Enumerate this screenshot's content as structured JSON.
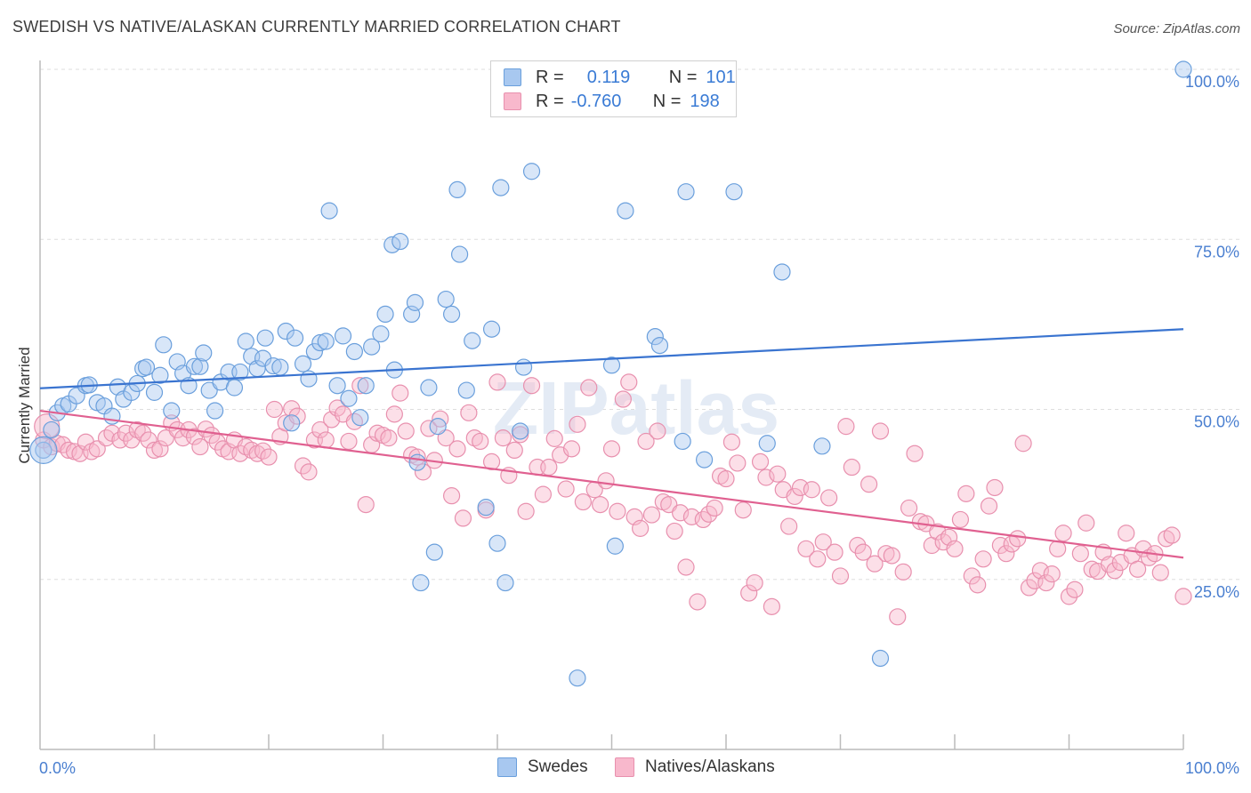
{
  "title": "SWEDISH VS NATIVE/ALASKAN CURRENTLY MARRIED CORRELATION CHART",
  "source": "Source: ZipAtlas.com",
  "watermark": "ZIPatlas",
  "legend": {
    "rows": [
      {
        "r_label": "R =",
        "r_value": "0.119",
        "n_label": "N =",
        "n_value": "101"
      },
      {
        "r_label": "R =",
        "r_value": "-0.760",
        "n_label": "N =",
        "n_value": "198"
      }
    ]
  },
  "bottom_legend": [
    "Swedes",
    "Natives/Alaskans"
  ],
  "colors": {
    "swedes_fill": "#a8c8f0",
    "swedes_stroke": "#6a9fdc",
    "swedes_line": "#3a74d0",
    "natives_fill": "#f8b8cc",
    "natives_stroke": "#e890ae",
    "natives_line": "#e06090",
    "axis_text": "#4a7fd0",
    "grid": "#dddddd"
  },
  "chart_data": {
    "type": "scatter",
    "xlabel": "",
    "ylabel": "Currently Married",
    "xlim": [
      0,
      100
    ],
    "ylim": [
      0,
      100
    ],
    "x_tick_labels": [
      "0.0%",
      "100.0%"
    ],
    "y_tick_labels": [
      "25.0%",
      "50.0%",
      "75.0%",
      "100.0%"
    ],
    "y_ticks": [
      25,
      50,
      75,
      100
    ],
    "grid": true,
    "legend_position": "top-center",
    "series": [
      {
        "name": "Swedes",
        "trend": [
          [
            0,
            53.1
          ],
          [
            100,
            61.8
          ]
        ],
        "points": [
          [
            0.3,
            44.0
          ],
          [
            1,
            47
          ],
          [
            1.5,
            49.5
          ],
          [
            2.0,
            50.5
          ],
          [
            2.5,
            50.8
          ],
          [
            3.2,
            52
          ],
          [
            4,
            53.5
          ],
          [
            4.3,
            53.6
          ],
          [
            5,
            51
          ],
          [
            5.6,
            50.5
          ],
          [
            6.3,
            49
          ],
          [
            6.8,
            53.3
          ],
          [
            7.3,
            51.5
          ],
          [
            8,
            52.5
          ],
          [
            8.5,
            53.8
          ],
          [
            9,
            56
          ],
          [
            9.3,
            56.2
          ],
          [
            10,
            52.5
          ],
          [
            10.5,
            55
          ],
          [
            10.8,
            59.5
          ],
          [
            11.5,
            49.8
          ],
          [
            12,
            57
          ],
          [
            12.5,
            55.3
          ],
          [
            13,
            53.5
          ],
          [
            13.5,
            56.3
          ],
          [
            14,
            56.3
          ],
          [
            14.3,
            58.3
          ],
          [
            14.8,
            52.8
          ],
          [
            15.3,
            49.8
          ],
          [
            15.8,
            54
          ],
          [
            16.5,
            55.5
          ],
          [
            17,
            53.2
          ],
          [
            17.5,
            55.5
          ],
          [
            18,
            60
          ],
          [
            18.5,
            57.8
          ],
          [
            19,
            56
          ],
          [
            19.5,
            57.5
          ],
          [
            19.7,
            60.5
          ],
          [
            20.4,
            56.4
          ],
          [
            21,
            56.2
          ],
          [
            21.5,
            61.5
          ],
          [
            22,
            48
          ],
          [
            22.3,
            60.5
          ],
          [
            23,
            56.7
          ],
          [
            23.5,
            54.5
          ],
          [
            24,
            58.5
          ],
          [
            24.5,
            59.8
          ],
          [
            25,
            60
          ],
          [
            25.3,
            79.2
          ],
          [
            26,
            53.5
          ],
          [
            26.5,
            60.8
          ],
          [
            27,
            51.6
          ],
          [
            27.5,
            58.5
          ],
          [
            28,
            48.8
          ],
          [
            28.5,
            53.5
          ],
          [
            29,
            59.2
          ],
          [
            29.8,
            61.1
          ],
          [
            30.2,
            64
          ],
          [
            30.8,
            74.2
          ],
          [
            31,
            55.8
          ],
          [
            31.5,
            74.7
          ],
          [
            32.5,
            64
          ],
          [
            32.8,
            65.7
          ],
          [
            33,
            42.2
          ],
          [
            33.3,
            24.5
          ],
          [
            34,
            53.2
          ],
          [
            34.5,
            29
          ],
          [
            34.8,
            47.5
          ],
          [
            35.5,
            66.2
          ],
          [
            36,
            64
          ],
          [
            36.5,
            82.3
          ],
          [
            36.7,
            72.8
          ],
          [
            37.3,
            52.8
          ],
          [
            37.8,
            60.1
          ],
          [
            39,
            35.6
          ],
          [
            39.5,
            61.8
          ],
          [
            40,
            30.3
          ],
          [
            40.3,
            82.6
          ],
          [
            40.7,
            24.5
          ],
          [
            42,
            46.8
          ],
          [
            42.3,
            56.2
          ],
          [
            43,
            85
          ],
          [
            47,
            100
          ],
          [
            47,
            10.5
          ],
          [
            50,
            56.5
          ],
          [
            50.3,
            29.9
          ],
          [
            51.2,
            79.2
          ],
          [
            53.8,
            60.7
          ],
          [
            54.2,
            59.4
          ],
          [
            56.2,
            45.3
          ],
          [
            56.5,
            82
          ],
          [
            58.1,
            42.6
          ],
          [
            60.7,
            82
          ],
          [
            63.6,
            45
          ],
          [
            64.9,
            70.2
          ],
          [
            68.4,
            44.6
          ],
          [
            73.5,
            13.4
          ],
          [
            100,
            100
          ]
        ]
      },
      {
        "name": "Natives/Alaskans",
        "trend": [
          [
            0,
            49.8
          ],
          [
            100,
            28.2
          ]
        ],
        "points": [
          [
            0.3,
            45.5
          ],
          [
            1,
            44.5
          ],
          [
            1.5,
            45
          ],
          [
            2,
            44.8
          ],
          [
            2.5,
            44
          ],
          [
            3,
            43.8
          ],
          [
            3.5,
            43.5
          ],
          [
            4,
            45.2
          ],
          [
            4.5,
            43.8
          ],
          [
            5,
            44.2
          ],
          [
            5.8,
            45.8
          ],
          [
            6.3,
            46.5
          ],
          [
            7,
            45.5
          ],
          [
            7.5,
            46.5
          ],
          [
            8,
            45.5
          ],
          [
            8.5,
            47
          ],
          [
            9,
            46.5
          ],
          [
            9.5,
            45.5
          ],
          [
            10,
            44
          ],
          [
            10.5,
            44.2
          ],
          [
            11,
            45.8
          ],
          [
            11.5,
            48
          ],
          [
            12,
            47
          ],
          [
            12.5,
            45.8
          ],
          [
            13,
            47
          ],
          [
            13.5,
            46
          ],
          [
            14,
            44.5
          ],
          [
            14.5,
            47.1
          ],
          [
            15,
            46.2
          ],
          [
            15.5,
            45.2
          ],
          [
            16,
            44.2
          ],
          [
            16.5,
            43.8
          ],
          [
            17,
            45.5
          ],
          [
            17.5,
            43.5
          ],
          [
            18,
            44.5
          ],
          [
            18.5,
            44
          ],
          [
            19,
            43.5
          ],
          [
            19.5,
            43.9
          ],
          [
            20,
            43
          ],
          [
            20.5,
            50
          ],
          [
            21,
            46
          ],
          [
            21.5,
            48
          ],
          [
            22,
            50.1
          ],
          [
            22.5,
            49
          ],
          [
            23,
            41.7
          ],
          [
            23.5,
            40.8
          ],
          [
            24,
            45.5
          ],
          [
            24.5,
            47
          ],
          [
            25,
            45.5
          ],
          [
            25.5,
            48.5
          ],
          [
            26,
            50.2
          ],
          [
            26.5,
            49.3
          ],
          [
            27,
            45.3
          ],
          [
            27.5,
            48.2
          ],
          [
            28,
            53.5
          ],
          [
            28.5,
            36
          ],
          [
            29,
            44.8
          ],
          [
            29.5,
            46.5
          ],
          [
            30,
            46.2
          ],
          [
            30.5,
            45.8
          ],
          [
            31,
            49.3
          ],
          [
            31.5,
            52.4
          ],
          [
            32,
            46.8
          ],
          [
            32.5,
            43.3
          ],
          [
            33,
            43
          ],
          [
            33.5,
            40.8
          ],
          [
            34,
            47.2
          ],
          [
            34.5,
            42.5
          ],
          [
            35,
            48.6
          ],
          [
            35.5,
            45.8
          ],
          [
            36,
            37.3
          ],
          [
            36.5,
            44.2
          ],
          [
            37,
            34
          ],
          [
            37.5,
            49.5
          ],
          [
            38,
            45.8
          ],
          [
            38.5,
            45.3
          ],
          [
            39,
            35.2
          ],
          [
            39.5,
            42.3
          ],
          [
            40,
            54
          ],
          [
            40.5,
            45.8
          ],
          [
            41,
            40.3
          ],
          [
            41.5,
            44
          ],
          [
            42,
            46.3
          ],
          [
            42.5,
            35
          ],
          [
            43,
            53.5
          ],
          [
            43.5,
            41.5
          ],
          [
            44,
            37.5
          ],
          [
            44.5,
            41.5
          ],
          [
            45,
            45.7
          ],
          [
            45.5,
            43.3
          ],
          [
            46,
            38.3
          ],
          [
            46.5,
            44.2
          ],
          [
            47,
            47.8
          ],
          [
            47.5,
            36.4
          ],
          [
            48,
            53.2
          ],
          [
            48.5,
            38.2
          ],
          [
            49,
            36
          ],
          [
            49.5,
            39.5
          ],
          [
            50,
            44.2
          ],
          [
            50.5,
            35
          ],
          [
            51,
            51.5
          ],
          [
            51.5,
            54
          ],
          [
            52,
            34.2
          ],
          [
            52.5,
            32.5
          ],
          [
            53,
            45.3
          ],
          [
            53.5,
            34.5
          ],
          [
            54,
            46.8
          ],
          [
            54.5,
            36.4
          ],
          [
            55,
            36
          ],
          [
            55.5,
            32.1
          ],
          [
            56,
            34.8
          ],
          [
            56.5,
            26.8
          ],
          [
            57,
            34.2
          ],
          [
            57.5,
            21.7
          ],
          [
            58,
            33.8
          ],
          [
            58.5,
            34.6
          ],
          [
            59,
            35.5
          ],
          [
            59.5,
            40.2
          ],
          [
            60,
            39.8
          ],
          [
            60.5,
            45.2
          ],
          [
            61,
            42.1
          ],
          [
            61.5,
            35.2
          ],
          [
            62,
            23
          ],
          [
            62.5,
            24.5
          ],
          [
            63,
            42.3
          ],
          [
            63.5,
            40
          ],
          [
            64,
            21
          ],
          [
            64.5,
            40.5
          ],
          [
            65,
            38.2
          ],
          [
            65.5,
            32.8
          ],
          [
            66,
            37.2
          ],
          [
            66.5,
            38.5
          ],
          [
            67,
            29.5
          ],
          [
            67.5,
            38.2
          ],
          [
            68,
            28
          ],
          [
            68.5,
            30.5
          ],
          [
            69,
            37
          ],
          [
            69.5,
            29
          ],
          [
            70,
            25.5
          ],
          [
            70.5,
            47.5
          ],
          [
            71,
            41.5
          ],
          [
            71.5,
            30
          ],
          [
            72,
            29
          ],
          [
            72.5,
            39
          ],
          [
            73,
            27.3
          ],
          [
            73.5,
            46.8
          ],
          [
            74,
            28.8
          ],
          [
            74.5,
            28.5
          ],
          [
            75,
            19.5
          ],
          [
            75.5,
            26.1
          ],
          [
            76,
            35.5
          ],
          [
            76.5,
            43.5
          ],
          [
            77,
            33.5
          ],
          [
            77.5,
            33.2
          ],
          [
            78,
            30
          ],
          [
            78.5,
            32
          ],
          [
            79,
            30.5
          ],
          [
            79.5,
            31.2
          ],
          [
            80,
            29.5
          ],
          [
            80.5,
            33.8
          ],
          [
            81,
            37.6
          ],
          [
            81.5,
            25.5
          ],
          [
            82,
            24.2
          ],
          [
            82.5,
            28
          ],
          [
            83,
            35.8
          ],
          [
            83.5,
            38.5
          ],
          [
            84,
            30
          ],
          [
            84.5,
            28.8
          ],
          [
            85,
            30.2
          ],
          [
            85.5,
            31
          ],
          [
            86,
            45
          ],
          [
            86.5,
            23.8
          ],
          [
            87,
            24.8
          ],
          [
            87.5,
            26.3
          ],
          [
            88,
            24.5
          ],
          [
            88.5,
            25.8
          ],
          [
            89,
            29.5
          ],
          [
            89.5,
            31.8
          ],
          [
            90,
            22.5
          ],
          [
            90.5,
            23.5
          ],
          [
            91,
            28.8
          ],
          [
            91.5,
            33.3
          ],
          [
            92,
            26.5
          ],
          [
            92.5,
            26.2
          ],
          [
            93,
            29
          ],
          [
            93.5,
            27.2
          ],
          [
            94,
            26.3
          ],
          [
            94.5,
            27.5
          ],
          [
            95,
            31.8
          ],
          [
            95.5,
            28.5
          ],
          [
            96,
            26.5
          ],
          [
            96.5,
            29.5
          ],
          [
            97,
            28.2
          ],
          [
            97.5,
            28.8
          ],
          [
            98,
            26
          ],
          [
            98.5,
            31
          ],
          [
            99,
            31.5
          ],
          [
            100,
            22.5
          ]
        ]
      }
    ]
  }
}
